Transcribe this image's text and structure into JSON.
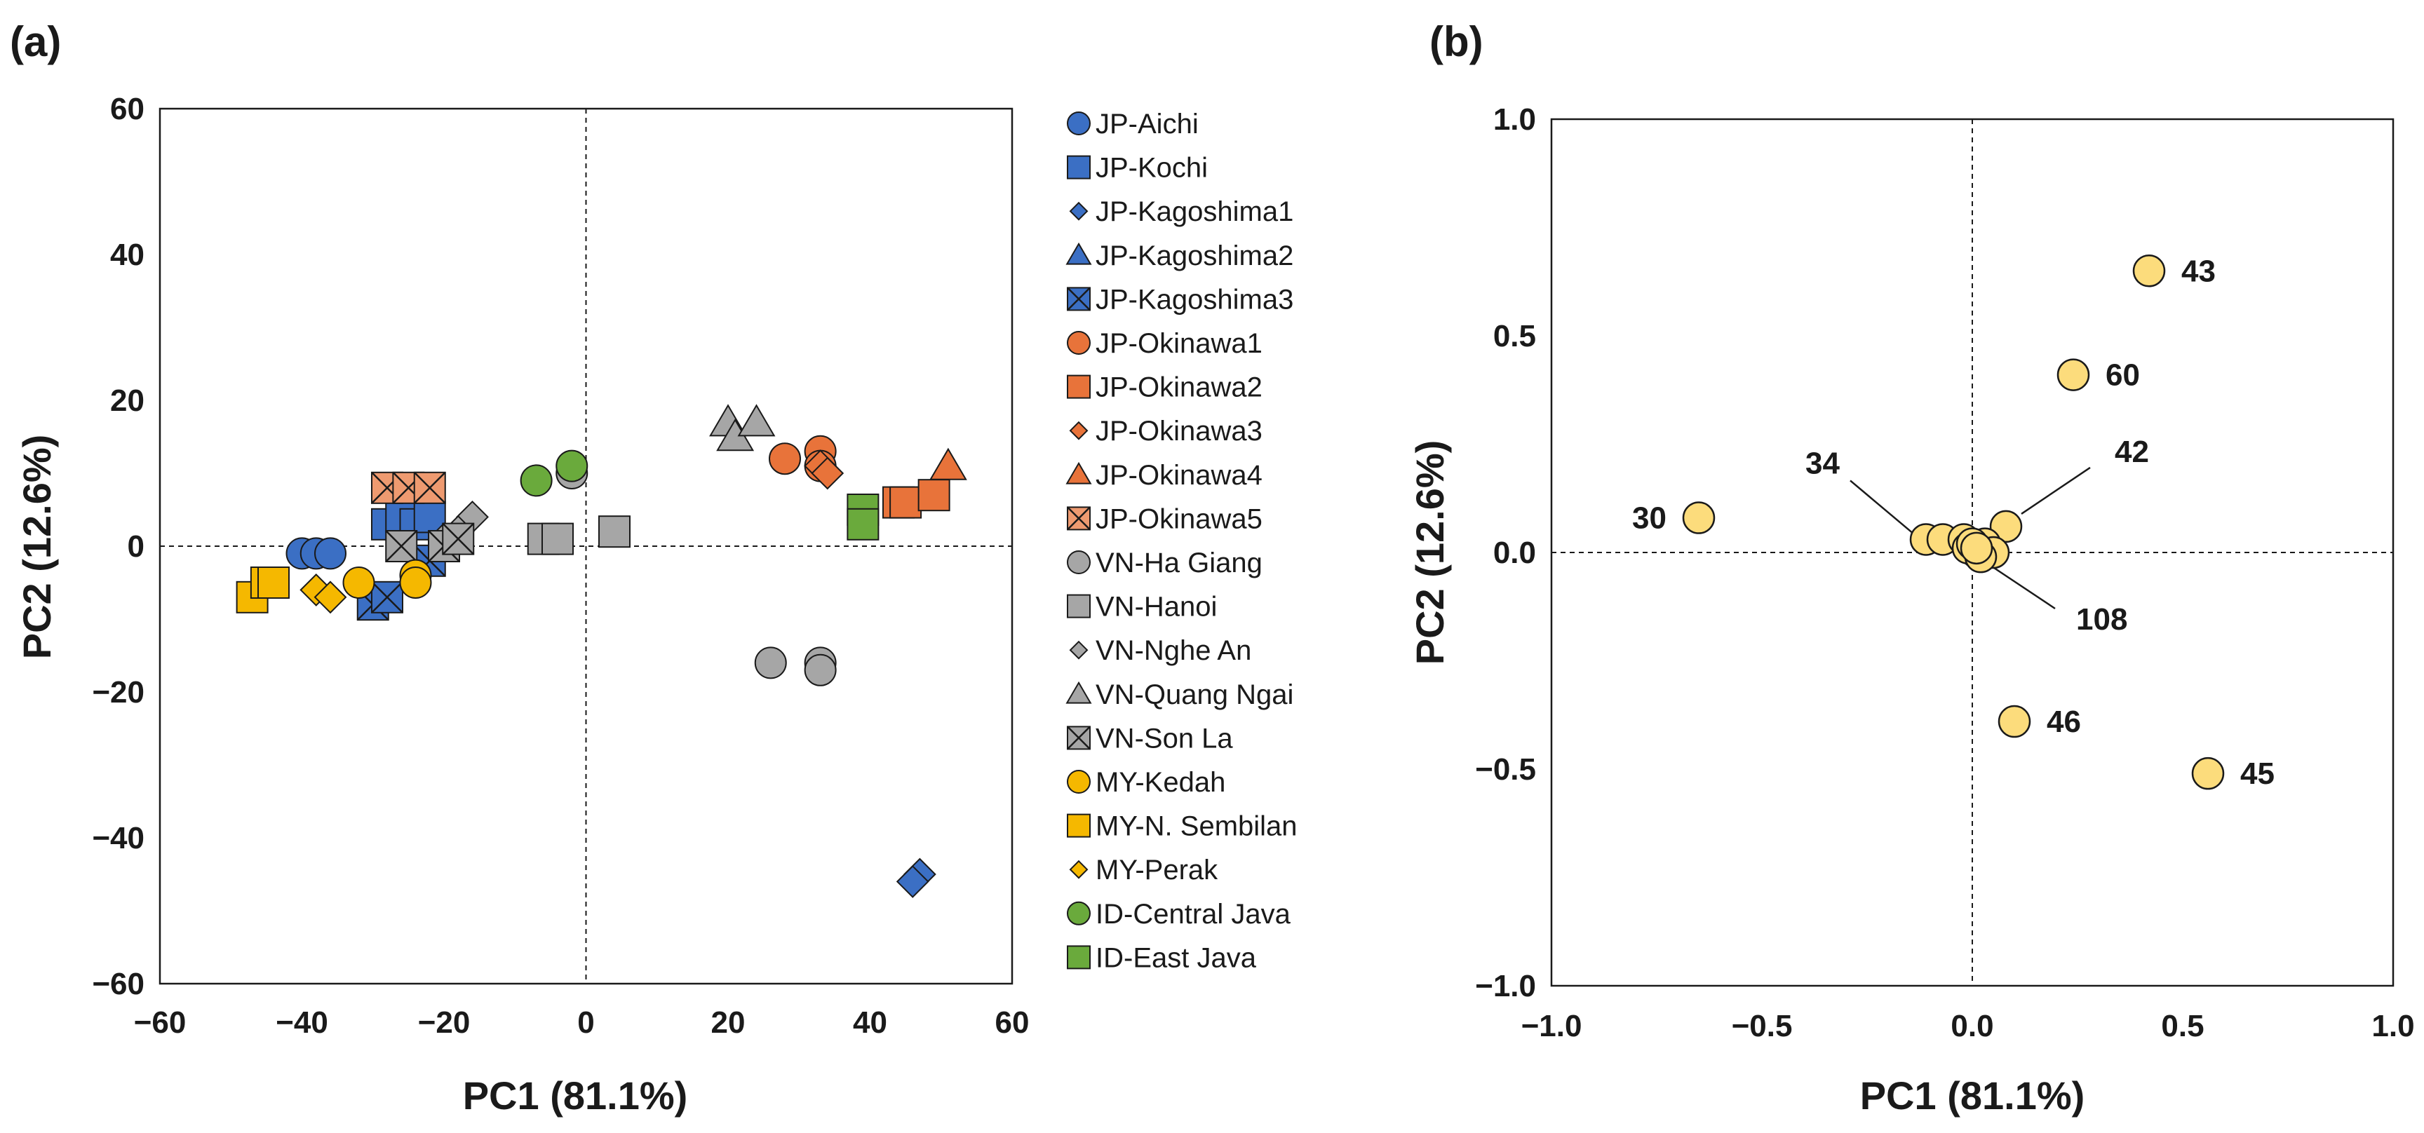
{
  "chart_data": [
    {
      "type": "scatter",
      "panel_label": "(a)",
      "xlabel": "PC1 (81.1%)",
      "ylabel": "PC2 (12.6%)",
      "xlim": [
        -60,
        60
      ],
      "ylim": [
        -60,
        60
      ],
      "xticks": [
        -60,
        -40,
        -20,
        0,
        20,
        40,
        60
      ],
      "yticks": [
        -60,
        -40,
        -20,
        0,
        20,
        40,
        60
      ],
      "xtick_labels": [
        "−60",
        "−40",
        "−20",
        "0",
        "20",
        "40",
        "60"
      ],
      "ytick_labels": [
        "−60",
        "−40",
        "−20",
        "0",
        "20",
        "40",
        "60"
      ],
      "grid": false,
      "zero_lines": true,
      "legend_position": "right",
      "series": [
        {
          "name": "JP-Aichi",
          "marker": "circle",
          "color": "#3b6fc4",
          "points": [
            [
              -40,
              -1
            ],
            [
              -38,
              -1
            ],
            [
              -36,
              -1
            ]
          ]
        },
        {
          "name": "JP-Kochi",
          "marker": "square",
          "color": "#3b6fc4",
          "points": [
            [
              -28,
              3
            ],
            [
              -26,
              4
            ],
            [
              -24,
              3
            ],
            [
              -22,
              4
            ]
          ]
        },
        {
          "name": "JP-Kagoshima1",
          "marker": "diamond",
          "color": "#3b6fc4",
          "points": [
            [
              47,
              -45
            ],
            [
              46,
              -46
            ]
          ]
        },
        {
          "name": "JP-Kagoshima2",
          "marker": "triangle",
          "color": "#3b6fc4",
          "points": []
        },
        {
          "name": "JP-Kagoshima3",
          "marker": "xsquare",
          "color": "#3b6fc4",
          "points": [
            [
              -30,
              -8
            ],
            [
              -28,
              -7
            ],
            [
              -22,
              -2
            ]
          ]
        },
        {
          "name": "JP-Okinawa1",
          "marker": "circle",
          "color": "#e8733a",
          "points": [
            [
              28,
              12
            ],
            [
              33,
              13
            ],
            [
              33,
              11
            ]
          ]
        },
        {
          "name": "JP-Okinawa2",
          "marker": "square",
          "color": "#e8733a",
          "points": [
            [
              44,
              6
            ],
            [
              45,
              6
            ],
            [
              49,
              7
            ]
          ]
        },
        {
          "name": "JP-Okinawa3",
          "marker": "diamond",
          "color": "#e8733a",
          "points": [
            [
              33,
              11
            ],
            [
              34,
              10
            ]
          ]
        },
        {
          "name": "JP-Okinawa4",
          "marker": "triangle",
          "color": "#e8733a",
          "points": [
            [
              51,
              11
            ]
          ]
        },
        {
          "name": "JP-Okinawa5",
          "marker": "xsquare",
          "color": "#ee9a70",
          "points": [
            [
              -28,
              8
            ],
            [
              -25,
              8
            ],
            [
              -22,
              8
            ]
          ]
        },
        {
          "name": "VN-Ha Giang",
          "marker": "circle",
          "color": "#a6a6a6",
          "points": [
            [
              -2,
              10
            ],
            [
              26,
              -16
            ],
            [
              33,
              -16
            ],
            [
              33,
              -17
            ]
          ]
        },
        {
          "name": "VN-Hanoi",
          "marker": "square",
          "color": "#a6a6a6",
          "points": [
            [
              -6,
              1
            ],
            [
              -4,
              1
            ],
            [
              4,
              2
            ]
          ]
        },
        {
          "name": "VN-Nghe An",
          "marker": "diamond",
          "color": "#a6a6a6",
          "points": [
            [
              -16,
              4
            ],
            [
              -18,
              2
            ],
            [
              -20,
              1
            ]
          ]
        },
        {
          "name": "VN-Quang Ngai",
          "marker": "triangle",
          "color": "#a6a6a6",
          "points": [
            [
              20,
              17
            ],
            [
              21,
              15
            ],
            [
              24,
              17
            ]
          ]
        },
        {
          "name": "VN-Son La",
          "marker": "xsquare",
          "color": "#a6a6a6",
          "points": [
            [
              -26,
              0
            ],
            [
              -20,
              0
            ],
            [
              -18,
              1
            ]
          ]
        },
        {
          "name": "MY-Kedah",
          "marker": "circle",
          "color": "#f5b800",
          "points": [
            [
              -32,
              -5
            ],
            [
              -24,
              -4
            ],
            [
              -24,
              -5
            ]
          ]
        },
        {
          "name": "MY-N. Sembilan",
          "marker": "square",
          "color": "#f5b800",
          "points": [
            [
              -47,
              -7
            ],
            [
              -45,
              -5
            ],
            [
              -44,
              -5
            ]
          ]
        },
        {
          "name": "MY-Perak",
          "marker": "diamond",
          "color": "#f5b800",
          "points": [
            [
              -38,
              -6
            ],
            [
              -36,
              -7
            ]
          ]
        },
        {
          "name": "ID-Central Java",
          "marker": "circle",
          "color": "#6aaa3c",
          "points": [
            [
              -7,
              9
            ],
            [
              -2,
              11
            ]
          ]
        },
        {
          "name": "ID-East Java",
          "marker": "square",
          "color": "#6aaa3c",
          "points": [
            [
              39,
              5
            ],
            [
              39,
              3
            ]
          ]
        }
      ]
    },
    {
      "type": "scatter",
      "panel_label": "(b)",
      "xlabel": "PC1 (81.1%)",
      "ylabel": "PC2 (12.6%)",
      "xlim": [
        -1.0,
        1.0
      ],
      "ylim": [
        -1.0,
        1.0
      ],
      "xticks": [
        -1.0,
        -0.5,
        0.0,
        0.5,
        1.0
      ],
      "yticks": [
        -1.0,
        -0.5,
        0.0,
        0.5,
        1.0
      ],
      "xtick_labels": [
        "−1.0",
        "−0.5",
        "0.0",
        "0.5",
        "1.0"
      ],
      "ytick_labels": [
        "−1.0",
        "−0.5",
        "0.0",
        "0.5",
        "1.0"
      ],
      "grid": false,
      "zero_lines": true,
      "marker": "circle",
      "color": "#fcdc7c",
      "points": [
        {
          "x": 0.42,
          "y": 0.65,
          "label": "43"
        },
        {
          "x": 0.24,
          "y": 0.41,
          "label": "60"
        },
        {
          "x": -0.65,
          "y": 0.08,
          "label": "30"
        },
        {
          "x": 0.08,
          "y": 0.06,
          "label": "42"
        },
        {
          "x": -0.11,
          "y": 0.03,
          "label": "34"
        },
        {
          "x": 0.01,
          "y": 0.0,
          "label": "108"
        },
        {
          "x": 0.1,
          "y": -0.39,
          "label": "46"
        },
        {
          "x": 0.56,
          "y": -0.51,
          "label": "45"
        },
        {
          "x": -0.07,
          "y": 0.03,
          "label": ""
        },
        {
          "x": -0.02,
          "y": 0.03,
          "label": ""
        },
        {
          "x": 0.03,
          "y": 0.02,
          "label": ""
        },
        {
          "x": 0.05,
          "y": 0.0,
          "label": ""
        },
        {
          "x": -0.01,
          "y": 0.01,
          "label": ""
        },
        {
          "x": 0.02,
          "y": -0.01,
          "label": ""
        },
        {
          "x": 0.0,
          "y": 0.02,
          "label": ""
        },
        {
          "x": 0.01,
          "y": 0.01,
          "label": ""
        }
      ]
    }
  ]
}
